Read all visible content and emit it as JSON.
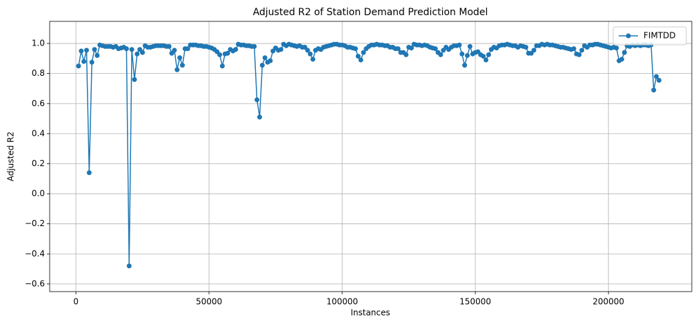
{
  "chart_data": {
    "type": "line",
    "title": "Adjusted R2 of Station Demand Prediction Model",
    "x_label": "Instances",
    "y_label": "Adjusted R2",
    "x": [
      1000,
      2000,
      3000,
      4000,
      5000,
      6000,
      7000,
      8000,
      9000,
      10000,
      11000,
      12000,
      13000,
      14000,
      15000,
      16000,
      17000,
      18000,
      19000,
      20000,
      21000,
      22000,
      23000,
      24000,
      25000,
      26000,
      27000,
      28000,
      29000,
      30000,
      31000,
      32000,
      33000,
      34000,
      35000,
      36000,
      37000,
      38000,
      39000,
      40000,
      41000,
      42000,
      43000,
      44000,
      45000,
      46000,
      47000,
      48000,
      49000,
      50000,
      51000,
      52000,
      53000,
      54000,
      55000,
      56000,
      57000,
      58000,
      59000,
      60000,
      61000,
      62000,
      63000,
      64000,
      65000,
      66000,
      67000,
      68000,
      69000,
      70000,
      71000,
      72000,
      73000,
      74000,
      75000,
      76000,
      77000,
      78000,
      79000,
      80000,
      81000,
      82000,
      83000,
      84000,
      85000,
      86000,
      87000,
      88000,
      89000,
      90000,
      91000,
      92000,
      93000,
      94000,
      95000,
      96000,
      97000,
      98000,
      99000,
      100000,
      101000,
      102000,
      103000,
      104000,
      105000,
      106000,
      107000,
      108000,
      109000,
      110000,
      111000,
      112000,
      113000,
      114000,
      115000,
      116000,
      117000,
      118000,
      119000,
      120000,
      121000,
      122000,
      123000,
      124000,
      125000,
      126000,
      127000,
      128000,
      129000,
      130000,
      131000,
      132000,
      133000,
      134000,
      135000,
      136000,
      137000,
      138000,
      139000,
      140000,
      141000,
      142000,
      143000,
      144000,
      145000,
      146000,
      147000,
      148000,
      149000,
      150000,
      151000,
      152000,
      153000,
      154000,
      155000,
      156000,
      157000,
      158000,
      159000,
      160000,
      161000,
      162000,
      163000,
      164000,
      165000,
      166000,
      167000,
      168000,
      169000,
      170000,
      171000,
      172000,
      173000,
      174000,
      175000,
      176000,
      177000,
      178000,
      179000,
      180000,
      181000,
      182000,
      183000,
      184000,
      185000,
      186000,
      187000,
      188000,
      189000,
      190000,
      191000,
      192000,
      193000,
      194000,
      195000,
      196000,
      197000,
      198000,
      199000,
      200000,
      201000,
      202000,
      203000,
      204000,
      205000,
      206000,
      207000,
      208000,
      209000,
      210000,
      211000,
      212000,
      213000,
      214000,
      215000,
      216000,
      217000,
      218000,
      219000
    ],
    "series": [
      {
        "name": "FIMTDD",
        "color": "#1f77b4",
        "values": [
          0.85,
          0.95,
          0.88,
          0.955,
          0.14,
          0.875,
          0.96,
          0.92,
          0.99,
          0.985,
          0.98,
          0.98,
          0.98,
          0.975,
          0.98,
          0.965,
          0.97,
          0.975,
          0.965,
          -0.48,
          0.96,
          0.76,
          0.93,
          0.96,
          0.94,
          0.985,
          0.975,
          0.975,
          0.98,
          0.985,
          0.985,
          0.985,
          0.985,
          0.98,
          0.98,
          0.935,
          0.955,
          0.825,
          0.905,
          0.855,
          0.965,
          0.965,
          0.99,
          0.99,
          0.99,
          0.985,
          0.985,
          0.98,
          0.98,
          0.975,
          0.97,
          0.96,
          0.945,
          0.925,
          0.85,
          0.93,
          0.935,
          0.96,
          0.95,
          0.96,
          0.995,
          0.99,
          0.99,
          0.985,
          0.985,
          0.98,
          0.98,
          0.625,
          0.51,
          0.855,
          0.905,
          0.875,
          0.885,
          0.95,
          0.97,
          0.955,
          0.96,
          0.995,
          0.985,
          0.995,
          0.99,
          0.985,
          0.98,
          0.985,
          0.975,
          0.975,
          0.955,
          0.93,
          0.895,
          0.955,
          0.965,
          0.96,
          0.975,
          0.98,
          0.985,
          0.99,
          0.995,
          0.995,
          0.99,
          0.99,
          0.985,
          0.975,
          0.975,
          0.97,
          0.965,
          0.915,
          0.89,
          0.94,
          0.965,
          0.98,
          0.99,
          0.99,
          0.995,
          0.99,
          0.99,
          0.985,
          0.985,
          0.975,
          0.975,
          0.965,
          0.965,
          0.94,
          0.94,
          0.925,
          0.975,
          0.97,
          0.995,
          0.99,
          0.99,
          0.985,
          0.99,
          0.985,
          0.975,
          0.97,
          0.965,
          0.94,
          0.925,
          0.955,
          0.975,
          0.96,
          0.975,
          0.985,
          0.985,
          0.99,
          0.93,
          0.855,
          0.92,
          0.98,
          0.93,
          0.94,
          0.945,
          0.925,
          0.915,
          0.89,
          0.925,
          0.96,
          0.975,
          0.97,
          0.985,
          0.99,
          0.99,
          0.995,
          0.99,
          0.985,
          0.985,
          0.975,
          0.985,
          0.98,
          0.975,
          0.935,
          0.935,
          0.955,
          0.985,
          0.985,
          0.995,
          0.99,
          0.995,
          0.99,
          0.99,
          0.985,
          0.98,
          0.975,
          0.975,
          0.97,
          0.965,
          0.96,
          0.965,
          0.93,
          0.925,
          0.955,
          0.985,
          0.975,
          0.99,
          0.99,
          0.995,
          0.995,
          0.99,
          0.985,
          0.98,
          0.975,
          0.97,
          0.975,
          0.97,
          0.885,
          0.895,
          0.94,
          0.985,
          0.98,
          0.99,
          0.985,
          0.99,
          0.985,
          0.99,
          0.99,
          0.985,
          0.99,
          0.69,
          0.78,
          0.755
        ]
      }
    ],
    "xlim": [
      -9850,
      231300
    ],
    "ylim": [
      -0.651,
      1.147
    ],
    "xticks": [
      0,
      50000,
      100000,
      150000,
      200000
    ],
    "yticks": [
      {
        "value": -0.6,
        "label": "−0.6"
      },
      {
        "value": -0.4,
        "label": "−0.4"
      },
      {
        "value": -0.2,
        "label": "−0.2"
      },
      {
        "value": 0,
        "label": "0.0"
      },
      {
        "value": 0.2,
        "label": "0.2"
      },
      {
        "value": 0.4,
        "label": "0.4"
      },
      {
        "value": 0.6,
        "label": "0.6"
      },
      {
        "value": 0.8,
        "label": "0.8"
      },
      {
        "value": 1,
        "label": "1.0"
      }
    ],
    "grid": true,
    "legend": "upper right"
  }
}
